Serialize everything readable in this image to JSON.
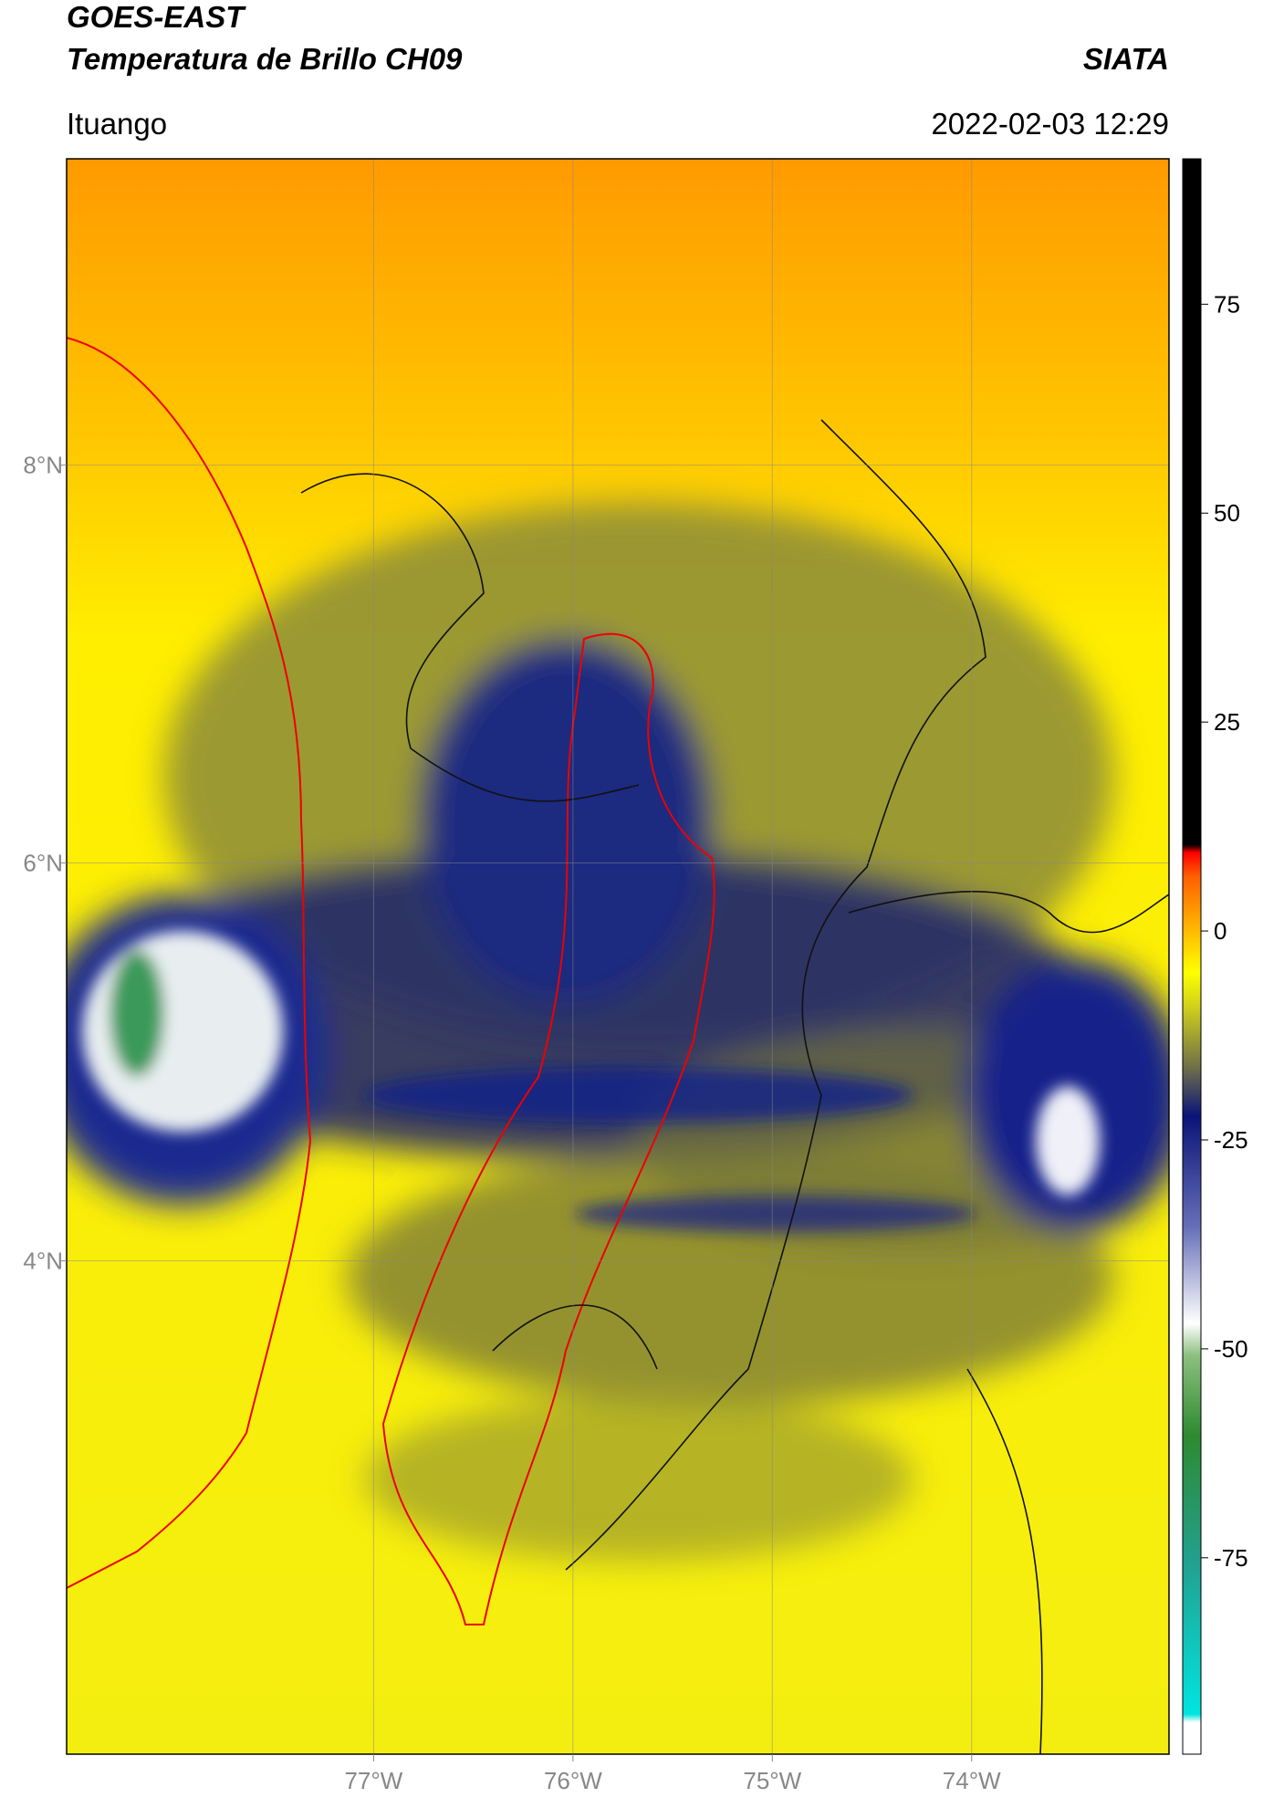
{
  "header": {
    "title": "GOES-EAST",
    "subtitle": "Temperatura de Brillo CH09",
    "agency": "SIATA",
    "location": "Ituango",
    "datetime": "2022-02-03 12:29"
  },
  "map": {
    "xlim": [
      -78.54,
      -73.01
    ],
    "ylim": [
      1.52,
      9.54
    ],
    "xticks": [
      {
        "value": -77,
        "label": "77°W"
      },
      {
        "value": -76,
        "label": "76°W"
      },
      {
        "value": -75,
        "label": "75°W"
      },
      {
        "value": -74,
        "label": "74°W"
      }
    ],
    "yticks": [
      {
        "value": 4,
        "label": "4°N"
      },
      {
        "value": 6,
        "label": "6°N"
      },
      {
        "value": 8,
        "label": "8°N"
      }
    ],
    "grid": true
  },
  "colorbar": {
    "lim": [
      -98.5,
      92.4
    ],
    "ticks": [
      -75,
      -50,
      -25,
      0,
      25,
      50,
      75
    ]
  }
}
